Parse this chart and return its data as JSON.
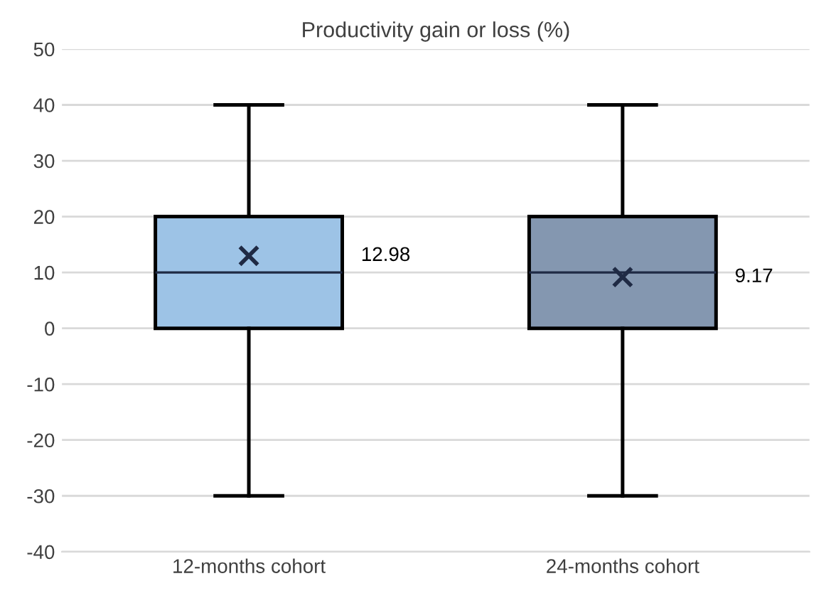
{
  "chart_data": {
    "type": "box",
    "title": "Productivity gain or loss (%)",
    "categories": [
      "12-months cohort",
      "24-months cohort"
    ],
    "boxes": [
      {
        "low": -30,
        "q1": 0,
        "median": 10,
        "q3": 20,
        "high": 40,
        "mean": 12.98
      },
      {
        "low": -30,
        "q1": 0,
        "median": 10,
        "q3": 20,
        "high": 40,
        "mean": 9.17
      }
    ],
    "colors": [
      "#9dc3e6",
      "#8497b0"
    ],
    "annotations": [
      "12.98",
      "9.17"
    ],
    "ylim": [
      -40,
      50
    ],
    "yticks": [
      -40,
      -30,
      -20,
      -10,
      0,
      10,
      20,
      30,
      40,
      50
    ],
    "grid": "y",
    "marker": "cross"
  }
}
